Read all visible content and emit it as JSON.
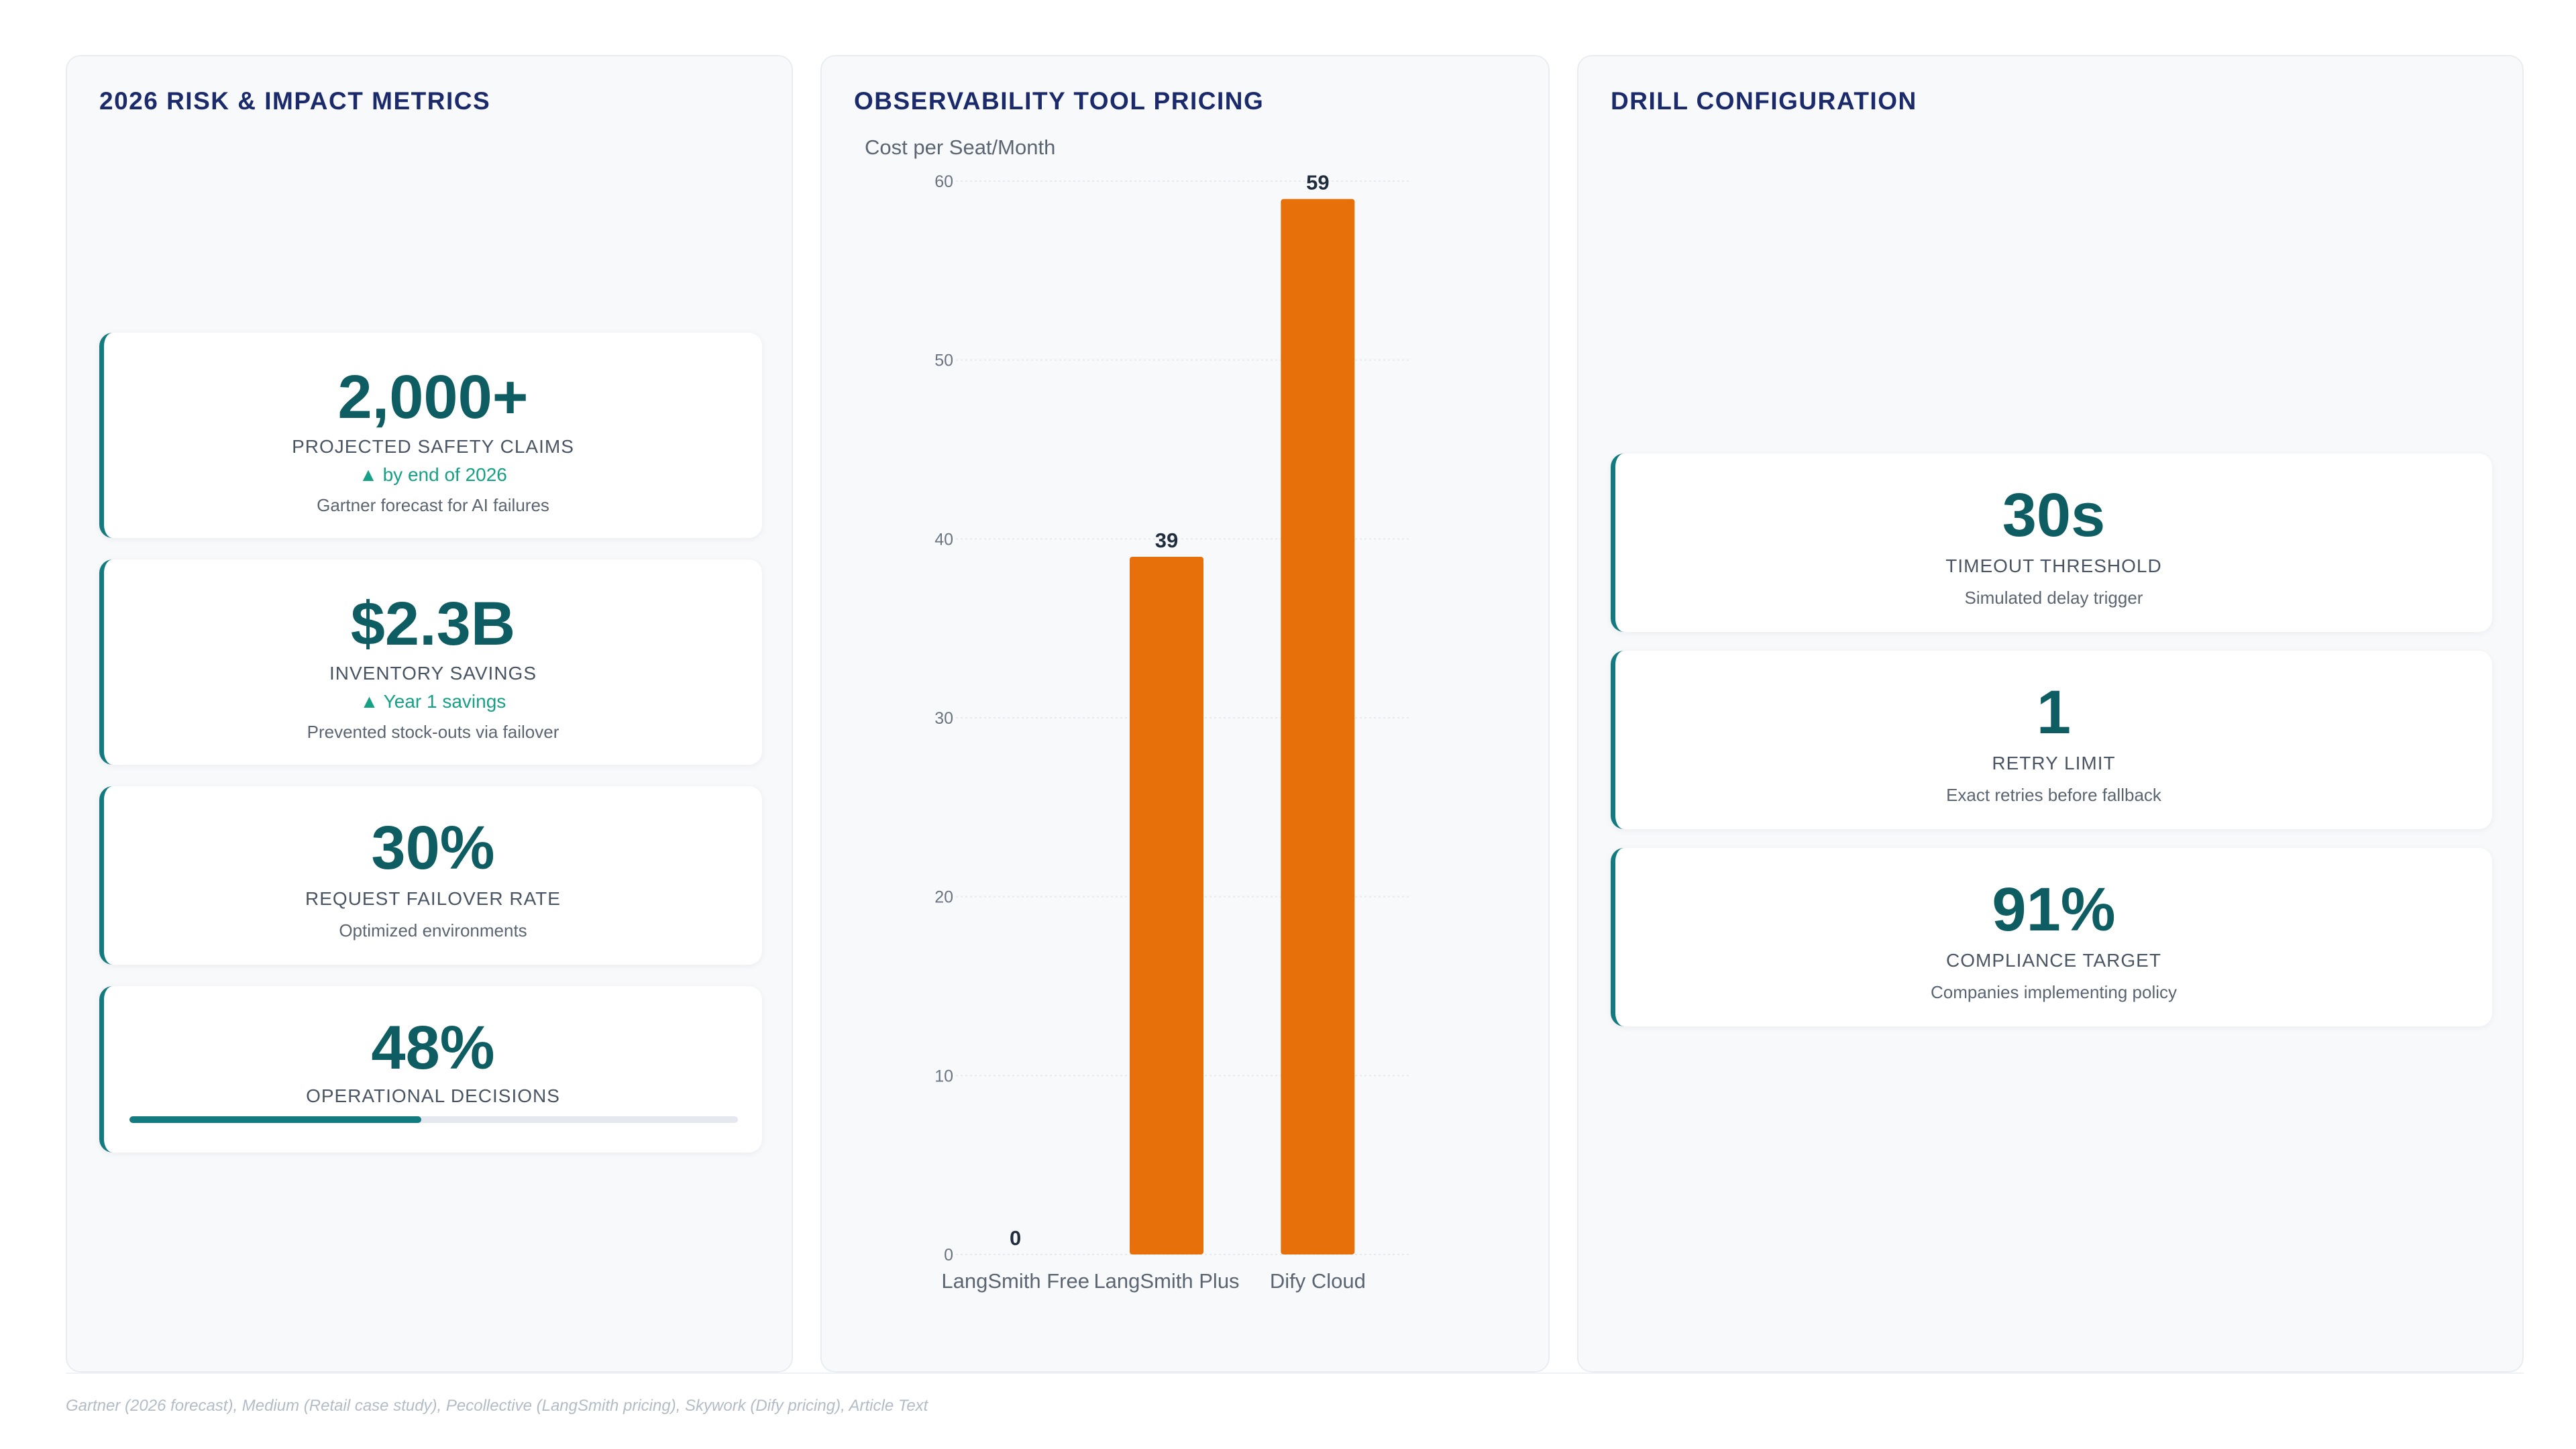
{
  "left_panel": {
    "title": "2026 RISK & IMPACT METRICS",
    "cards": [
      {
        "value": "2,000+",
        "label": "PROJECTED SAFETY CLAIMS",
        "trend": "▲ by end of 2026",
        "note": "Gartner forecast for AI failures"
      },
      {
        "value": "$2.3B",
        "label": "INVENTORY SAVINGS",
        "trend": "▲ Year 1 savings",
        "note": "Prevented stock-outs via failover"
      },
      {
        "value": "30%",
        "label": "REQUEST FAILOVER RATE",
        "note": "Optimized environments"
      },
      {
        "value": "48%",
        "label": "OPERATIONAL DECISIONS",
        "progress": 0.48
      }
    ]
  },
  "middle_panel": {
    "title": "OBSERVABILITY TOOL PRICING"
  },
  "chart_data": {
    "type": "bar",
    "categories": [
      "LangSmith Free",
      "LangSmith Plus",
      "Dify Cloud"
    ],
    "values": [
      0,
      39,
      59
    ],
    "ylabel": "Cost per Seat/Month",
    "ylim": [
      0,
      60
    ],
    "yticks": [
      0,
      10,
      20,
      30,
      40,
      50,
      60
    ],
    "bar_color": "#e8700a",
    "grid": true
  },
  "right_panel": {
    "title": "DRILL CONFIGURATION",
    "cards": [
      {
        "value": "30s",
        "label": "TIMEOUT THRESHOLD",
        "note": "Simulated delay trigger"
      },
      {
        "value": "1",
        "label": "RETRY LIMIT",
        "note": "Exact retries before fallback"
      },
      {
        "value": "91%",
        "label": "COMPLIANCE TARGET",
        "note": "Companies implementing policy"
      }
    ]
  },
  "footer": {
    "sources": "Gartner (2026 forecast), Medium (Retail case study), Pecollective (LangSmith pricing), Skywork (Dify pricing), Article Text"
  },
  "colors": {
    "accent": "#137b7f",
    "metric_value": "#0e5d63",
    "trend": "#16a085",
    "title": "#1b2a6b",
    "bar": "#e8700a"
  }
}
